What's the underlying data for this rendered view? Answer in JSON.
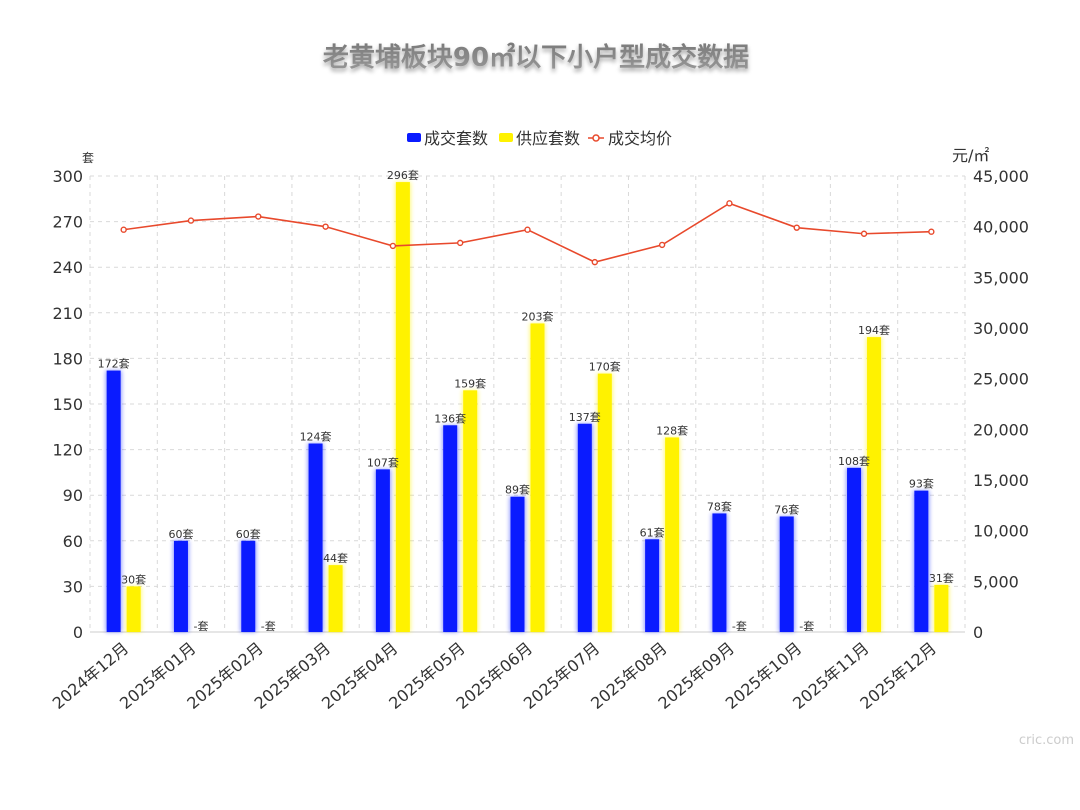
{
  "title": "老黄埔板块90㎡以下小户型成交数据",
  "watermark": "cric.com",
  "colors": {
    "bar1": "#0a1bff",
    "bar2": "#fff200",
    "line": "#e8492c",
    "grid": "#d9d9d9",
    "text": "#333333"
  },
  "chart_data": {
    "type": "bar",
    "categories": [
      "2024年12月",
      "2025年01月",
      "2025年02月",
      "2025年03月",
      "2025年04月",
      "2025年05月",
      "2025年06月",
      "2025年07月",
      "2025年08月",
      "2025年09月",
      "2025年10月",
      "2025年11月",
      "2025年12月"
    ],
    "series": [
      {
        "name": "成交套数",
        "type": "bar",
        "axis": "left",
        "values": [
          172,
          60,
          60,
          124,
          107,
          136,
          89,
          137,
          61,
          78,
          76,
          108,
          93
        ]
      },
      {
        "name": "供应套数",
        "type": "bar",
        "axis": "left",
        "values": [
          30,
          null,
          null,
          44,
          296,
          159,
          203,
          170,
          128,
          null,
          null,
          194,
          31
        ]
      },
      {
        "name": "成交均价",
        "type": "line",
        "axis": "right",
        "values": [
          39700,
          40600,
          41000,
          40000,
          38100,
          38400,
          39700,
          36500,
          38200,
          42300,
          39900,
          39300,
          39500
        ]
      }
    ],
    "data_label_suffix": "套",
    "missing_label": "-套",
    "y_left": {
      "unit": "套",
      "min": 0,
      "max": 300,
      "ticks": [
        "0",
        "30",
        "60",
        "90",
        "120",
        "150",
        "180",
        "210",
        "240",
        "270",
        "300"
      ]
    },
    "y_right": {
      "unit": "元/㎡",
      "min": 0,
      "max": 45000,
      "ticks": [
        "0",
        "5,000",
        "10,000",
        "15,000",
        "20,000",
        "25,000",
        "30,000",
        "35,000",
        "40,000",
        "45,000"
      ]
    },
    "grid": true,
    "legend_position": "top-center"
  }
}
